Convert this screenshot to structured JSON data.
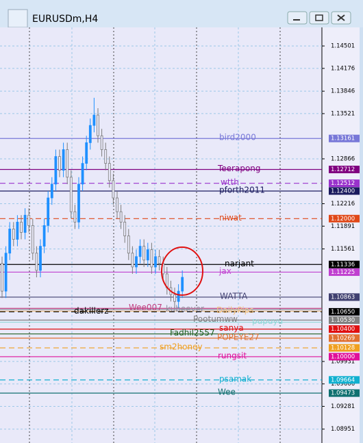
{
  "chart_data": {
    "type": "candlestick",
    "title": "EURUSDm,H4",
    "ylim": [
      1.0875,
      1.1477
    ],
    "yticks": [
      1.14501,
      1.14176,
      1.13846,
      1.13521,
      1.12866,
      1.12216,
      1.11891,
      1.11561,
      1.09931,
      1.09606,
      1.09281,
      1.08951
    ],
    "grid": true,
    "up_color": "#1e90ff",
    "down_color": "#7a7a7a",
    "open": [
      1.1135,
      1.1095,
      1.115,
      1.1185,
      1.117,
      1.1195,
      1.118,
      1.1205,
      1.119,
      1.115,
      1.1125,
      1.116,
      1.119,
      1.123,
      1.125,
      1.129,
      1.127,
      1.13,
      1.126,
      1.121,
      1.1195,
      1.125,
      1.128,
      1.131,
      1.1335,
      1.135,
      1.132,
      1.13,
      1.128,
      1.1255,
      1.123,
      1.121,
      1.1195,
      1.1175,
      1.115,
      1.113,
      1.1145,
      1.116,
      1.114,
      1.1155,
      1.113,
      1.1145,
      1.1135,
      1.112,
      1.11,
      1.109,
      1.108,
      1.1095
    ],
    "high": [
      1.1145,
      1.116,
      1.1195,
      1.1195,
      1.1205,
      1.1205,
      1.1215,
      1.1215,
      1.12,
      1.116,
      1.117,
      1.12,
      1.124,
      1.126,
      1.13,
      1.13,
      1.131,
      1.131,
      1.127,
      1.122,
      1.126,
      1.129,
      1.132,
      1.1345,
      1.1375,
      1.136,
      1.133,
      1.131,
      1.129,
      1.1265,
      1.124,
      1.122,
      1.1205,
      1.1185,
      1.116,
      1.1155,
      1.117,
      1.117,
      1.1165,
      1.1165,
      1.1155,
      1.1155,
      1.1145,
      1.113,
      1.111,
      1.11,
      1.1105,
      1.1125
    ],
    "low": [
      1.1085,
      1.1085,
      1.114,
      1.116,
      1.116,
      1.117,
      1.117,
      1.118,
      1.114,
      1.1115,
      1.1115,
      1.115,
      1.118,
      1.122,
      1.124,
      1.126,
      1.126,
      1.125,
      1.12,
      1.1185,
      1.1185,
      1.124,
      1.127,
      1.13,
      1.1325,
      1.131,
      1.129,
      1.127,
      1.1245,
      1.122,
      1.12,
      1.1185,
      1.1165,
      1.114,
      1.112,
      1.112,
      1.1135,
      1.113,
      1.113,
      1.112,
      1.112,
      1.1125,
      1.111,
      1.109,
      1.108,
      1.107,
      1.107,
      1.1085
    ],
    "close": [
      1.1095,
      1.115,
      1.1185,
      1.117,
      1.1195,
      1.118,
      1.1205,
      1.119,
      1.115,
      1.1125,
      1.116,
      1.119,
      1.123,
      1.125,
      1.129,
      1.127,
      1.13,
      1.126,
      1.121,
      1.1195,
      1.125,
      1.128,
      1.131,
      1.1335,
      1.135,
      1.132,
      1.13,
      1.128,
      1.1255,
      1.123,
      1.121,
      1.1195,
      1.1175,
      1.115,
      1.113,
      1.1145,
      1.116,
      1.114,
      1.1155,
      1.113,
      1.1145,
      1.1135,
      1.112,
      1.11,
      1.109,
      1.108,
      1.1095,
      1.1115
    ],
    "levels": [
      {
        "name": "bird2000",
        "value": 1.13161,
        "value_label": "1.13161",
        "color": "#7878d8",
        "dashed": false
      },
      {
        "name": "Teerapong",
        "value": 1.12712,
        "value_label": "1.12712",
        "color": "#800080",
        "dashed": false
      },
      {
        "name": "wtth",
        "value": 1.12512,
        "value_label": "1.12512",
        "color": "#9932cc",
        "dashed": true
      },
      {
        "name": "pforth2011",
        "value": 1.124,
        "value_label": "1.12400",
        "color": "#1a1a5e",
        "dashed": false
      },
      {
        "name": "niwat",
        "value": 1.12,
        "value_label": "1.12000",
        "color": "#e04818",
        "dashed": true
      },
      {
        "name": "narjant",
        "value": 1.11336,
        "value_label": "1.11336",
        "color": "#000000",
        "dashed": false
      },
      {
        "name": "jax",
        "value": 1.11225,
        "value_label": "1.11225",
        "color": "#c040d0",
        "dashed": false
      },
      {
        "name": "WATTA",
        "value": 1.10863,
        "value_label": "1.10863",
        "color": "#404070",
        "dashed": false
      },
      {
        "name": "Wee007",
        "value": 1.107,
        "color": "#c04080",
        "dashed": false
      },
      {
        "name": "kubeever",
        "value": 1.1068,
        "color": "#9090a0",
        "dashed": false
      },
      {
        "name": "DailyPips",
        "value": 1.1066,
        "color": "#f0c080",
        "dashed": false
      },
      {
        "name": "dakillerz",
        "value": 1.1065,
        "value_label": "1.10650",
        "color": "#000000",
        "dashed": true
      },
      {
        "name": "Pootumww",
        "value": 1.1053,
        "value_label": "1.10530",
        "color": "#808080",
        "dashed": false
      },
      {
        "name": "pupuyu",
        "value": 1.105,
        "color": "#90d8d8",
        "dashed": false
      },
      {
        "name": "sanya",
        "value": 1.104,
        "value_label": "1.10400",
        "color": "#e01010",
        "dashed": false
      },
      {
        "name": "Fadhil2557",
        "value": 1.1033,
        "color": "#206020",
        "dashed": false
      },
      {
        "name": "POPEYE27",
        "value": 1.10269,
        "value_label": "1.10269",
        "color": "#e07030",
        "dashed": false
      },
      {
        "name": "sm2honey",
        "value": 1.10128,
        "value_label": "1.10128",
        "color": "#f0a020",
        "dashed": true
      },
      {
        "name": "rungsit",
        "value": 1.1,
        "value_label": "1.10000",
        "color": "#e0109a",
        "dashed": false
      },
      {
        "name": "psamak",
        "value": 1.09664,
        "value_label": "1.09664",
        "color": "#10b0d0",
        "dashed": true
      },
      {
        "name": "Wee",
        "value": 1.09473,
        "value_label": "1.09473",
        "color": "#107070",
        "dashed": false
      }
    ]
  }
}
